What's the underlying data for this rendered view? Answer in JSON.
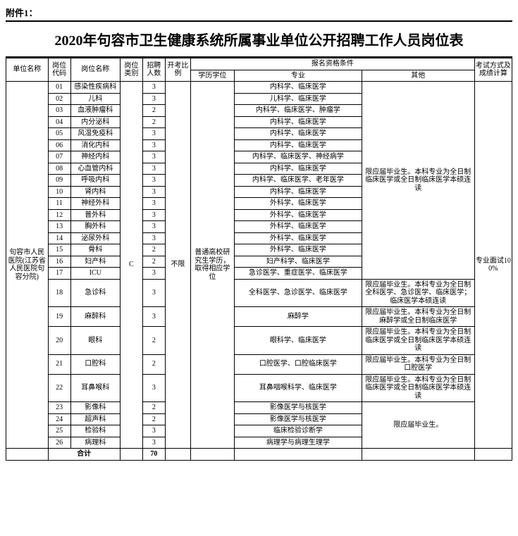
{
  "attachment_label": "附件1：",
  "title": "2020年句容市卫生健康系统所属事业单位公开招聘工作人员岗位表",
  "headers": {
    "unit": "单位名称",
    "code": "岗位代码",
    "post": "岗位名称",
    "cat": "岗位类别",
    "num": "招聘人数",
    "ratio": "开考比例",
    "qual_group": "报名资格条件",
    "edu": "学历学位",
    "major": "专业",
    "other": "其他",
    "exam": "考试方式及成绩计算"
  },
  "unit_name": "句容市人民医院(江苏省人民医院句容分院)",
  "category": "C",
  "ratio": "不限",
  "edu_req": "普通高校研究生学历，取得相应学位",
  "exam_method": "专业面试100%",
  "other_group1": "限应届毕业生。本科专业为全日制临床医学或全日制临床医学本硕连读",
  "other_18": "限应届毕业生。本科专业为全日制全科医学、急诊医学、临床医学；临床医学本硕连读",
  "other_19": "限应届毕业生。本科专业为全日制麻醉学或全日制临床医学",
  "other_20": "限应届毕业生。本科专业为全日制临床医学或全日制临床医学本硕连读",
  "other_21": "限应届毕业生。本科专业为全日制口腔医学",
  "other_22": "限应届毕业生。本科专业为全日制临床医学或全日制临床医学本硕连读",
  "other_group2": "限应届毕业生。",
  "rows": [
    {
      "code": "01",
      "post": "感染性疾病科",
      "num": "3",
      "major": "内科学、临床医学"
    },
    {
      "code": "02",
      "post": "儿科",
      "num": "3",
      "major": "儿科学、临床医学"
    },
    {
      "code": "03",
      "post": "血液肿瘤科",
      "num": "2",
      "major": "内科学、临床医学、肿瘤学"
    },
    {
      "code": "04",
      "post": "内分泌科",
      "num": "2",
      "major": "内科学、临床医学"
    },
    {
      "code": "05",
      "post": "风湿免疫科",
      "num": "3",
      "major": "内科学、临床医学"
    },
    {
      "code": "06",
      "post": "消化内科",
      "num": "3",
      "major": "内科学、临床医学"
    },
    {
      "code": "07",
      "post": "神经内科",
      "num": "3",
      "major": "内科学、临床医学、神经病学"
    },
    {
      "code": "08",
      "post": "心血管内科",
      "num": "3",
      "major": "内科学、临床医学"
    },
    {
      "code": "09",
      "post": "呼吸内科",
      "num": "3",
      "major": "内科学、临床医学、老年医学"
    },
    {
      "code": "10",
      "post": "肾内科",
      "num": "3",
      "major": "内科学、临床医学"
    },
    {
      "code": "11",
      "post": "神经外科",
      "num": "3",
      "major": "外科学、临床医学"
    },
    {
      "code": "12",
      "post": "普外科",
      "num": "3",
      "major": "外科学、临床医学"
    },
    {
      "code": "13",
      "post": "胸外科",
      "num": "3",
      "major": "外科学、临床医学"
    },
    {
      "code": "14",
      "post": "泌尿外科",
      "num": "3",
      "major": "外科学、临床医学"
    },
    {
      "code": "15",
      "post": "骨科",
      "num": "2",
      "major": "外科学、临床医学"
    },
    {
      "code": "16",
      "post": "妇产科",
      "num": "2",
      "major": "妇产科学、临床医学"
    },
    {
      "code": "17",
      "post": "ICU",
      "num": "3",
      "major": "急诊医学、重症医学、临床医学"
    },
    {
      "code": "18",
      "post": "急诊科",
      "num": "3",
      "major": "全科医学、急诊医学、临床医学"
    },
    {
      "code": "19",
      "post": "麻醉科",
      "num": "3",
      "major": "麻醉学"
    },
    {
      "code": "20",
      "post": "眼科",
      "num": "2",
      "major": "眼科学、临床医学"
    },
    {
      "code": "21",
      "post": "口腔科",
      "num": "2",
      "major": "口腔医学、口腔临床医学"
    },
    {
      "code": "22",
      "post": "耳鼻喉科",
      "num": "3",
      "major": "耳鼻咽喉科学、临床医学"
    },
    {
      "code": "23",
      "post": "影像科",
      "num": "2",
      "major": "影像医学与核医学"
    },
    {
      "code": "24",
      "post": "超声科",
      "num": "2",
      "major": "影像医学与核医学"
    },
    {
      "code": "25",
      "post": "检验科",
      "num": "3",
      "major": "临床检验诊断学"
    },
    {
      "code": "26",
      "post": "病理科",
      "num": "3",
      "major": "病理学与病理生理学"
    }
  ],
  "total": {
    "label": "合计",
    "num": "70"
  }
}
